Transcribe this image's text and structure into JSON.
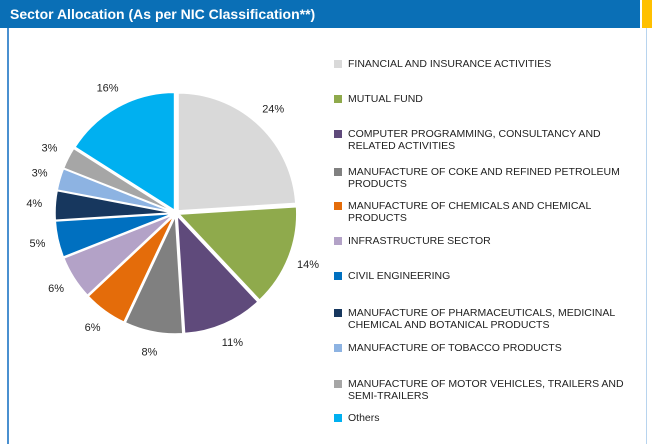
{
  "chart_data": {
    "type": "pie",
    "title": "Sector Allocation (As per NIC Classification**)",
    "categories": [
      "FINANCIAL AND INSURANCE ACTIVITIES",
      "MUTUAL FUND",
      "COMPUTER PROGRAMMING, CONSULTANCY AND RELATED ACTIVITIES",
      "MANUFACTURE OF COKE AND REFINED PETROLEUM PRODUCTS",
      "MANUFACTURE OF CHEMICALS AND CHEMICAL PRODUCTS",
      "INFRASTRUCTURE SECTOR",
      "CIVIL ENGINEERING",
      "MANUFACTURE OF PHARMACEUTICALS, MEDICINAL CHEMICAL AND BOTANICAL PRODUCTS",
      "MANUFACTURE OF TOBACCO PRODUCTS",
      "MANUFACTURE OF MOTOR VEHICLES, TRAILERS AND SEMI-TRAILERS",
      "Others"
    ],
    "values": [
      24,
      14,
      11,
      8,
      6,
      6,
      5,
      4,
      3,
      3,
      16
    ],
    "value_labels": [
      "24%",
      "14%",
      "11%",
      "8%",
      "6%",
      "6%",
      "5%",
      "4%",
      "3%",
      "3%",
      "16%"
    ],
    "colors": [
      "#d9d9d9",
      "#8faa4c",
      "#5f4a7b",
      "#808080",
      "#e46c0a",
      "#b3a2c7",
      "#0070c0",
      "#17375e",
      "#8db3e2",
      "#a6a6a6",
      "#00b0f0"
    ]
  }
}
